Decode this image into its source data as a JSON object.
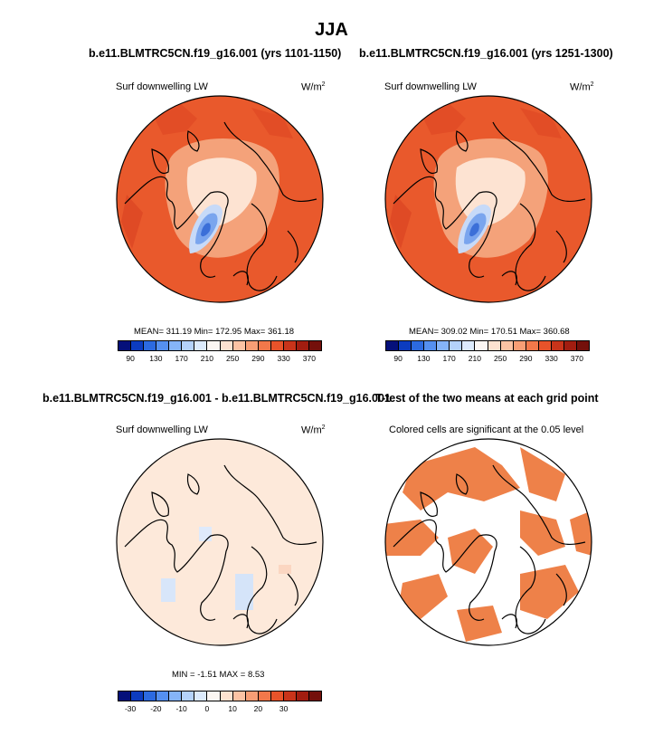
{
  "title": "JJA",
  "panels": [
    {
      "id": "p1",
      "title": "b.e11.BLMTRC5CN.f19_g16.001 (yrs 1101-1150)",
      "subtitle": "Surf downwelling LW",
      "units_base": "W/m",
      "units_exp": "2",
      "stats": "MEAN= 311.19  Min= 172.95  Max= 361.18"
    },
    {
      "id": "p2",
      "title": "b.e11.BLMTRC5CN.f19_g16.001 (yrs 1251-1300)",
      "subtitle": "Surf downwelling LW",
      "units_base": "W/m",
      "units_exp": "2",
      "stats": "MEAN= 309.02  Min= 170.51  Max= 360.68"
    },
    {
      "id": "p3",
      "title": "b.e11.BLMTRC5CN.f19_g16.001 - b.e11.BLMTRC5CN.f19_g16.001",
      "subtitle": "Surf downwelling LW",
      "units_base": "W/m",
      "units_exp": "2",
      "stats": "MIN =  -1.51  MAX =   8.53"
    },
    {
      "id": "p4",
      "title": "T-test of the two means at each grid point",
      "subtitle": "Colored cells are significant at the 0.05 level"
    }
  ],
  "colorbars": {
    "absolute": {
      "colors": [
        "#05107a",
        "#0c3cc0",
        "#2c6ae0",
        "#5590f0",
        "#85b4f8",
        "#b4d2fa",
        "#dceafc",
        "#fbf6f3",
        "#fde2d0",
        "#fcc3a4",
        "#f89e75",
        "#f3784a",
        "#e8532a",
        "#c9341a",
        "#a21d10",
        "#74100b"
      ],
      "ticks": [
        "90",
        "130",
        "170",
        "210",
        "250",
        "290",
        "330",
        "370"
      ]
    },
    "difference": {
      "colors": [
        "#05107a",
        "#0c3cc0",
        "#2c6ae0",
        "#5590f0",
        "#85b4f8",
        "#b4d2fa",
        "#dceafc",
        "#fbf6f3",
        "#fde2d0",
        "#fcc3a4",
        "#f89e75",
        "#f3784a",
        "#e8532a",
        "#c9341a",
        "#a21d10",
        "#74100b"
      ],
      "ticks": [
        "-30",
        "-20",
        "-10",
        "0",
        "10",
        "20",
        "30"
      ]
    }
  },
  "colors": {
    "field_background": "#e9592c",
    "arctic_warm": "#f4a27a",
    "arctic_pale": "#fde3d2",
    "greenland_low": "#7aa5ee",
    "greenland_lowest": "#3b6fd8",
    "difference_background": "#fde9da",
    "significant": "#ee8149"
  }
}
